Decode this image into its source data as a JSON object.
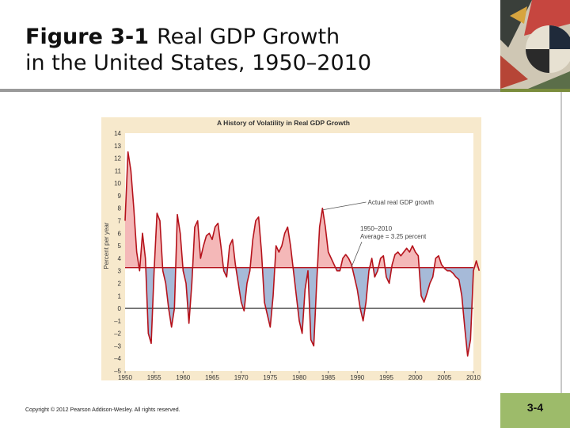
{
  "slide": {
    "figure_label": "Figure 3-1",
    "title_line1": "Real GDP Growth",
    "title_line2": "in the United States, 1950–2010",
    "copyright": "Copyright © 2012 Pearson Addison-Wesley. All rights reserved.",
    "slide_number": "3-4",
    "colors": {
      "title_rule": "#9a9a9a",
      "accent_green": "#9dbb6a",
      "chart_bg": "#f7e9cc",
      "plot_bg": "#ffffff",
      "growth_line": "#b5121b",
      "above_avg_fill": "#f4b8b8",
      "below_avg_fill": "#a6bad8"
    }
  },
  "chart_data": {
    "type": "line",
    "title": "A History of Volatility in Real GDP Growth",
    "xlabel": "",
    "ylabel": "Percent per year",
    "xlim": [
      1950,
      2010
    ],
    "ylim": [
      -5,
      14
    ],
    "x_ticks": [
      "1950",
      "1955",
      "1960",
      "1965",
      "1970",
      "1975",
      "1980",
      "1985",
      "1990",
      "1995",
      "2000",
      "2005",
      "2010"
    ],
    "y_ticks": [
      "14",
      "13",
      "12",
      "11",
      "10",
      "9",
      "8",
      "7",
      "6",
      "5",
      "4",
      "3",
      "2",
      "1",
      "0",
      "–1",
      "–2",
      "–3",
      "–4",
      "–5"
    ],
    "average": 3.25,
    "annotations": [
      {
        "text": "Actual real GDP growth",
        "target_x": 1983.8,
        "target_y": 8.0
      },
      {
        "text_line1": "1950–2010",
        "text_line2": "Average = 3.25 percent",
        "target_x": 1989.0,
        "target_y": 3.25
      }
    ],
    "series": [
      {
        "name": "Actual real GDP growth",
        "points": [
          [
            1950,
            7.0
          ],
          [
            1950.5,
            12.5
          ],
          [
            1951,
            11.0
          ],
          [
            1951.5,
            8.0
          ],
          [
            1952,
            4.5
          ],
          [
            1952.5,
            3.0
          ],
          [
            1953,
            6.0
          ],
          [
            1953.5,
            4.0
          ],
          [
            1954,
            -2.0
          ],
          [
            1954.5,
            -2.8
          ],
          [
            1955,
            3.0
          ],
          [
            1955.5,
            7.6
          ],
          [
            1956,
            7.0
          ],
          [
            1956.5,
            3.0
          ],
          [
            1957,
            2.0
          ],
          [
            1957.5,
            0.0
          ],
          [
            1958,
            -1.5
          ],
          [
            1958.5,
            0.0
          ],
          [
            1959,
            7.5
          ],
          [
            1959.5,
            6.0
          ],
          [
            1960,
            3.0
          ],
          [
            1960.5,
            2.0
          ],
          [
            1961,
            -1.2
          ],
          [
            1961.5,
            2.0
          ],
          [
            1962,
            6.5
          ],
          [
            1962.5,
            7.0
          ],
          [
            1963,
            4.0
          ],
          [
            1963.5,
            5.0
          ],
          [
            1964,
            5.8
          ],
          [
            1964.5,
            6.0
          ],
          [
            1965,
            5.5
          ],
          [
            1965.5,
            6.5
          ],
          [
            1966,
            6.8
          ],
          [
            1966.5,
            5.0
          ],
          [
            1967,
            3.0
          ],
          [
            1967.5,
            2.5
          ],
          [
            1968,
            5.0
          ],
          [
            1968.5,
            5.5
          ],
          [
            1969,
            3.5
          ],
          [
            1969.5,
            2.0
          ],
          [
            1970,
            0.5
          ],
          [
            1970.5,
            -0.2
          ],
          [
            1971,
            2.0
          ],
          [
            1971.5,
            3.0
          ],
          [
            1972,
            5.5
          ],
          [
            1972.5,
            7.0
          ],
          [
            1973,
            7.3
          ],
          [
            1973.5,
            4.5
          ],
          [
            1974,
            0.5
          ],
          [
            1974.5,
            -0.5
          ],
          [
            1975,
            -1.5
          ],
          [
            1975.5,
            1.0
          ],
          [
            1976,
            5.0
          ],
          [
            1976.5,
            4.5
          ],
          [
            1977,
            5.0
          ],
          [
            1977.5,
            6.0
          ],
          [
            1978,
            6.5
          ],
          [
            1978.5,
            5.0
          ],
          [
            1979,
            3.0
          ],
          [
            1979.5,
            1.0
          ],
          [
            1980,
            -1.0
          ],
          [
            1980.5,
            -2.0
          ],
          [
            1981,
            1.5
          ],
          [
            1981.5,
            3.0
          ],
          [
            1982,
            -2.5
          ],
          [
            1982.5,
            -3.0
          ],
          [
            1983,
            2.0
          ],
          [
            1983.5,
            6.5
          ],
          [
            1984,
            8.0
          ],
          [
            1984.5,
            6.5
          ],
          [
            1985,
            4.5
          ],
          [
            1985.5,
            4.0
          ],
          [
            1986,
            3.5
          ],
          [
            1986.5,
            3.0
          ],
          [
            1987,
            3.0
          ],
          [
            1987.5,
            4.0
          ],
          [
            1988,
            4.3
          ],
          [
            1988.5,
            4.0
          ],
          [
            1989,
            3.5
          ],
          [
            1989.5,
            2.5
          ],
          [
            1990,
            1.5
          ],
          [
            1990.5,
            0.0
          ],
          [
            1991,
            -1.0
          ],
          [
            1991.5,
            0.5
          ],
          [
            1992,
            3.0
          ],
          [
            1992.5,
            4.0
          ],
          [
            1993,
            2.5
          ],
          [
            1993.5,
            3.0
          ],
          [
            1994,
            4.0
          ],
          [
            1994.5,
            4.2
          ],
          [
            1995,
            2.5
          ],
          [
            1995.5,
            2.0
          ],
          [
            1996,
            3.5
          ],
          [
            1996.5,
            4.3
          ],
          [
            1997,
            4.5
          ],
          [
            1997.5,
            4.2
          ],
          [
            1998,
            4.5
          ],
          [
            1998.5,
            4.8
          ],
          [
            1999,
            4.5
          ],
          [
            1999.5,
            5.0
          ],
          [
            2000,
            4.5
          ],
          [
            2000.5,
            4.2
          ],
          [
            2001,
            1.0
          ],
          [
            2001.5,
            0.5
          ],
          [
            2002,
            1.2
          ],
          [
            2002.5,
            2.0
          ],
          [
            2003,
            2.5
          ],
          [
            2003.5,
            4.0
          ],
          [
            2004,
            4.2
          ],
          [
            2004.5,
            3.5
          ],
          [
            2005,
            3.2
          ],
          [
            2005.5,
            3.0
          ],
          [
            2006,
            3.0
          ],
          [
            2006.5,
            2.8
          ],
          [
            2007,
            2.5
          ],
          [
            2007.5,
            2.3
          ],
          [
            2008,
            1.0
          ],
          [
            2008.5,
            -1.5
          ],
          [
            2009,
            -3.8
          ],
          [
            2009.5,
            -2.5
          ],
          [
            2010,
            3.0
          ],
          [
            2010.5,
            3.8
          ],
          [
            2011,
            3.0
          ]
        ]
      }
    ],
    "grid": false,
    "legend": "none"
  }
}
